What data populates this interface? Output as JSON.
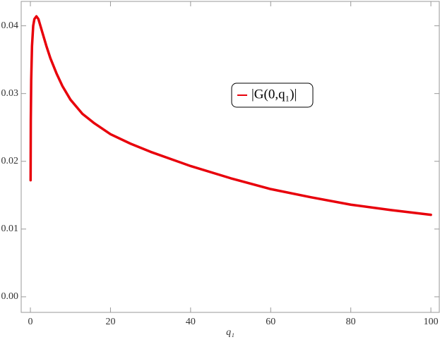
{
  "chart_data": {
    "type": "line",
    "xlabel": "q₁",
    "x": [
      0.05,
      0.1,
      0.2,
      0.4,
      0.7,
      1.0,
      1.5,
      2,
      3,
      4,
      5,
      6.5,
      8,
      10,
      13,
      16,
      20,
      25,
      30,
      40,
      50,
      60,
      70,
      80,
      90,
      100
    ],
    "series": [
      {
        "name": "|G(0,q₁)|",
        "color": "#e8000b",
        "values": [
          0.0172,
          0.026,
          0.032,
          0.037,
          0.04,
          0.041,
          0.0414,
          0.041,
          0.039,
          0.037,
          0.0352,
          0.033,
          0.0311,
          0.0291,
          0.027,
          0.0256,
          0.024,
          0.0226,
          0.0214,
          0.0193,
          0.0175,
          0.0159,
          0.0147,
          0.0136,
          0.0128,
          0.0121
        ]
      }
    ],
    "xlim": [
      -2.3,
      102.1
    ],
    "ylim": [
      -0.0023,
      0.0436
    ],
    "xticks": [
      0,
      20,
      40,
      60,
      80,
      100
    ],
    "yticks": [
      {
        "value": 0,
        "label": "0.00"
      },
      0.01,
      0.02,
      0.03,
      0.04
    ],
    "grid": false
  }
}
